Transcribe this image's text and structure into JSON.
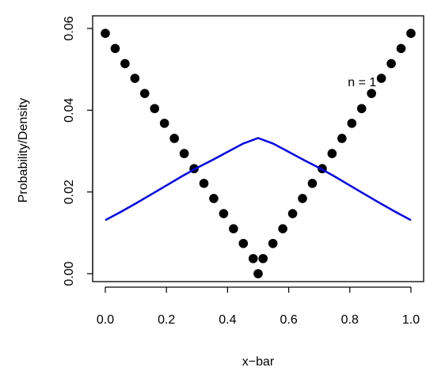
{
  "chart_data": {
    "type": "scatter",
    "title": "",
    "xlabel": "x−bar",
    "ylabel": "Probability/Density",
    "xlim": [
      0,
      1
    ],
    "ylim": [
      0,
      0.06
    ],
    "x_ticks": [
      "0.0",
      "0.2",
      "0.4",
      "0.6",
      "0.8",
      "1.0"
    ],
    "y_ticks": [
      "0.00",
      "0.02",
      "0.04",
      "0.06"
    ],
    "annotation": {
      "text": "n = 1",
      "x": 0.84,
      "y": 0.047
    },
    "series": [
      {
        "kind": "points",
        "color": "#000000",
        "x": [
          0.0,
          0.0323,
          0.0645,
          0.0968,
          0.129,
          0.1613,
          0.1935,
          0.2258,
          0.2581,
          0.2903,
          0.3226,
          0.3548,
          0.3871,
          0.4194,
          0.4516,
          0.4839,
          0.5,
          0.5161,
          0.5484,
          0.5806,
          0.6129,
          0.6452,
          0.6774,
          0.7097,
          0.7419,
          0.7742,
          0.8065,
          0.8387,
          0.871,
          0.9032,
          0.9355,
          0.9677,
          1.0
        ],
        "y": [
          0.0588,
          0.0551,
          0.0514,
          0.0478,
          0.0441,
          0.0404,
          0.0368,
          0.0331,
          0.0294,
          0.0257,
          0.0221,
          0.0184,
          0.0147,
          0.011,
          0.0074,
          0.0037,
          0.0,
          0.0037,
          0.0074,
          0.011,
          0.0147,
          0.0184,
          0.0221,
          0.0257,
          0.0294,
          0.0331,
          0.0368,
          0.0404,
          0.0441,
          0.0478,
          0.0514,
          0.0551,
          0.0588
        ]
      },
      {
        "kind": "line",
        "color": "#0000ee",
        "x": [
          0.0,
          0.05,
          0.1,
          0.15,
          0.2,
          0.25,
          0.3,
          0.35,
          0.4,
          0.45,
          0.5,
          0.55,
          0.6,
          0.65,
          0.7,
          0.75,
          0.8,
          0.85,
          0.9,
          0.95,
          1.0
        ],
        "y": [
          0.0131,
          0.0151,
          0.0172,
          0.0194,
          0.0216,
          0.0238,
          0.0259,
          0.0278,
          0.0298,
          0.0318,
          0.0332,
          0.0318,
          0.0298,
          0.0278,
          0.0259,
          0.0238,
          0.0216,
          0.0194,
          0.0172,
          0.0151,
          0.0131
        ]
      }
    ]
  }
}
